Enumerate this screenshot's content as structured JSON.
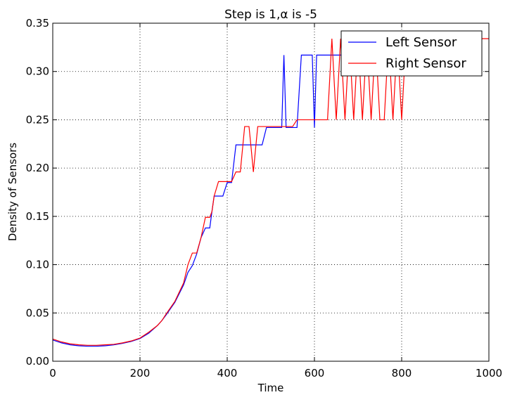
{
  "chart_data": {
    "type": "line",
    "title": "Step is 1,α is -5",
    "xlabel": "Time",
    "ylabel": "Density of Sensors",
    "xlim": [
      0,
      1000
    ],
    "ylim": [
      0,
      0.35
    ],
    "xticks": [
      0,
      200,
      400,
      600,
      800,
      1000
    ],
    "yticks": [
      0.0,
      0.05,
      0.1,
      0.15,
      0.2,
      0.25,
      0.3,
      0.35
    ],
    "xtick_labels": [
      "0",
      "200",
      "400",
      "600",
      "800",
      "1000"
    ],
    "ytick_labels": [
      "0.00",
      "0.05",
      "0.10",
      "0.15",
      "0.20",
      "0.25",
      "0.30",
      "0.35"
    ],
    "grid": true,
    "legend_position": "top-right",
    "series": [
      {
        "name": "Left Sensor",
        "color": "#0000ff",
        "x": [
          0,
          20,
          40,
          60,
          80,
          100,
          120,
          140,
          160,
          180,
          200,
          220,
          240,
          250,
          260,
          280,
          300,
          310,
          320,
          330,
          340,
          350,
          360,
          365,
          370,
          380,
          390,
          400,
          410,
          420,
          425,
          430,
          440,
          450,
          460,
          470,
          480,
          490,
          500,
          510,
          520,
          525,
          530,
          535,
          540,
          550,
          560,
          570,
          580,
          590,
          595,
          600,
          605,
          610,
          620,
          630,
          640,
          650,
          660,
          680,
          700,
          720,
          740,
          760,
          780,
          800,
          810
        ],
        "y": [
          0.022,
          0.019,
          0.017,
          0.016,
          0.0155,
          0.0155,
          0.016,
          0.017,
          0.0185,
          0.0205,
          0.0235,
          0.029,
          0.037,
          0.042,
          0.048,
          0.061,
          0.079,
          0.092,
          0.099,
          0.111,
          0.128,
          0.138,
          0.138,
          0.155,
          0.171,
          0.171,
          0.171,
          0.185,
          0.185,
          0.224,
          0.224,
          0.224,
          0.224,
          0.224,
          0.224,
          0.224,
          0.224,
          0.242,
          0.242,
          0.242,
          0.242,
          0.242,
          0.317,
          0.242,
          0.242,
          0.242,
          0.242,
          0.317,
          0.317,
          0.317,
          0.317,
          0.242,
          0.317,
          0.317,
          0.317,
          0.317,
          0.317,
          0.317,
          0.317,
          0.317,
          0.317,
          0.317,
          0.317,
          0.317,
          0.317,
          0.317,
          0.317
        ]
      },
      {
        "name": "Right Sensor",
        "color": "#ff0000",
        "x": [
          0,
          20,
          40,
          60,
          80,
          100,
          120,
          140,
          160,
          180,
          200,
          220,
          240,
          250,
          260,
          280,
          300,
          310,
          320,
          330,
          340,
          350,
          360,
          365,
          370,
          380,
          390,
          400,
          410,
          420,
          430,
          440,
          450,
          455,
          460,
          465,
          470,
          480,
          490,
          500,
          510,
          520,
          540,
          550,
          560,
          570,
          580,
          590,
          600,
          610,
          620,
          630,
          640,
          650,
          660,
          670,
          680,
          690,
          700,
          710,
          720,
          730,
          740,
          750,
          760,
          770,
          780,
          790,
          800,
          810,
          820,
          830,
          840,
          860,
          880,
          900,
          920,
          940,
          960,
          980,
          1000
        ],
        "y": [
          0.023,
          0.02,
          0.018,
          0.017,
          0.0165,
          0.0165,
          0.017,
          0.0175,
          0.019,
          0.021,
          0.024,
          0.03,
          0.037,
          0.042,
          0.049,
          0.062,
          0.081,
          0.1,
          0.112,
          0.112,
          0.128,
          0.149,
          0.149,
          0.155,
          0.171,
          0.186,
          0.186,
          0.186,
          0.186,
          0.196,
          0.196,
          0.243,
          0.243,
          0.22,
          0.196,
          0.22,
          0.243,
          0.243,
          0.243,
          0.243,
          0.243,
          0.243,
          0.243,
          0.243,
          0.25,
          0.25,
          0.25,
          0.25,
          0.25,
          0.25,
          0.25,
          0.25,
          0.334,
          0.25,
          0.334,
          0.25,
          0.334,
          0.25,
          0.334,
          0.25,
          0.334,
          0.25,
          0.334,
          0.25,
          0.25,
          0.334,
          0.25,
          0.334,
          0.25,
          0.334,
          0.334,
          0.334,
          0.334,
          0.334,
          0.334,
          0.334,
          0.334,
          0.334,
          0.334,
          0.334,
          0.334
        ]
      }
    ]
  }
}
